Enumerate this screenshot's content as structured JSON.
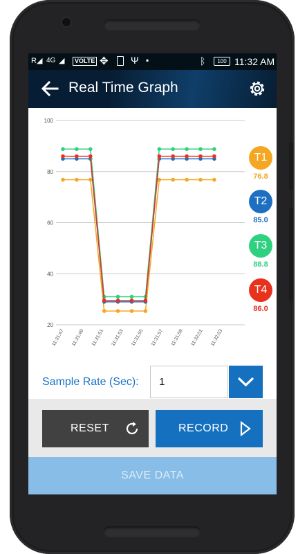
{
  "status_bar": {
    "network": "4G",
    "volte": "VOLTE",
    "battery": "100",
    "time": "11:32 AM"
  },
  "app_bar": {
    "title": "Real Time Graph",
    "back_icon": "arrow-back-icon",
    "settings_icon": "gear-icon"
  },
  "chart_data": {
    "type": "line",
    "x": [
      "11:31:47",
      "11:31:49",
      "11:31:51",
      "11:31:53",
      "11:31:55",
      "11:31:57",
      "11:31:59",
      "11:32:01",
      "11:32:03"
    ],
    "yticks": [
      20,
      40,
      60,
      80,
      100
    ],
    "ylim": [
      20,
      100
    ],
    "grid": true,
    "series": [
      {
        "name": "T1",
        "color": "#f5a623",
        "points": [
          [
            0,
            76.8
          ],
          [
            1,
            76.8
          ],
          [
            2,
            76.8
          ],
          [
            3,
            25.4
          ],
          [
            4,
            25.4
          ],
          [
            5,
            25.4
          ],
          [
            6,
            25.4
          ],
          [
            7,
            76.8
          ],
          [
            8,
            76.8
          ],
          [
            9,
            76.8
          ],
          [
            10,
            76.8
          ],
          [
            11,
            76.8
          ]
        ]
      },
      {
        "name": "T2",
        "color": "#1e6fc2",
        "points": [
          [
            0,
            85.0
          ],
          [
            1,
            85.0
          ],
          [
            2,
            85.0
          ],
          [
            3,
            29.0
          ],
          [
            4,
            29.0
          ],
          [
            5,
            29.0
          ],
          [
            6,
            29.0
          ],
          [
            7,
            85.0
          ],
          [
            8,
            85.0
          ],
          [
            9,
            85.0
          ],
          [
            10,
            85.0
          ],
          [
            11,
            85.0
          ]
        ]
      },
      {
        "name": "T3",
        "color": "#2fd07f",
        "points": [
          [
            0,
            88.8
          ],
          [
            1,
            88.8
          ],
          [
            2,
            88.8
          ],
          [
            3,
            31.0
          ],
          [
            4,
            31.0
          ],
          [
            5,
            31.0
          ],
          [
            6,
            31.0
          ],
          [
            7,
            88.8
          ],
          [
            8,
            88.8
          ],
          [
            9,
            88.8
          ],
          [
            10,
            88.8
          ],
          [
            11,
            88.8
          ]
        ]
      },
      {
        "name": "T4",
        "color": "#e8321e",
        "points": [
          [
            0,
            86.0
          ],
          [
            1,
            86.0
          ],
          [
            2,
            86.0
          ],
          [
            3,
            29.5
          ],
          [
            4,
            29.5
          ],
          [
            5,
            29.5
          ],
          [
            6,
            29.5
          ],
          [
            7,
            86.0
          ],
          [
            8,
            86.0
          ],
          [
            9,
            86.0
          ],
          [
            10,
            86.0
          ],
          [
            11,
            86.0
          ]
        ]
      }
    ]
  },
  "sensors": [
    {
      "label": "T1",
      "value": "76.8",
      "color": "#f5a623"
    },
    {
      "label": "T2",
      "value": "85.0",
      "color": "#1e6fc2"
    },
    {
      "label": "T3",
      "value": "88.8",
      "color": "#2fd07f"
    },
    {
      "label": "T4",
      "value": "86.0",
      "color": "#e8321e"
    }
  ],
  "sample_rate": {
    "label": "Sample Rate (Sec):",
    "value": "1"
  },
  "buttons": {
    "reset": "RESET",
    "record": "RECORD",
    "save": "SAVE DATA"
  }
}
